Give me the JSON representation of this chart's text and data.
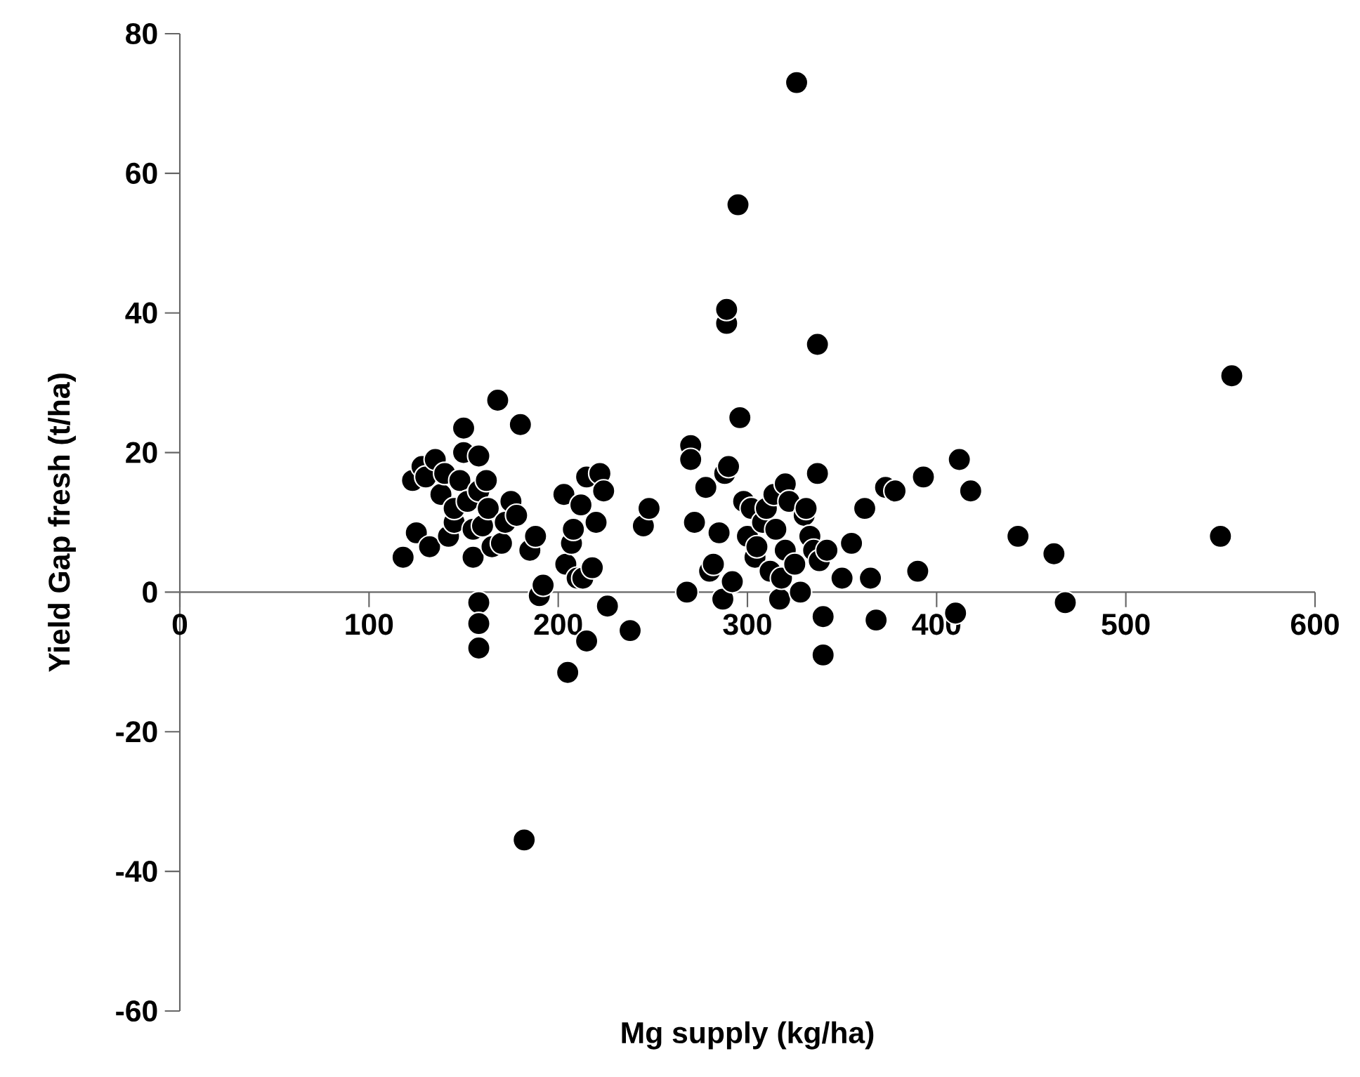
{
  "chart_data": {
    "type": "scatter",
    "xlabel": "Mg supply (kg/ha)",
    "ylabel": "Yield Gap fresh (t/ha)",
    "xlim": [
      0,
      600
    ],
    "ylim": [
      -60,
      80
    ],
    "xticks": [
      0,
      100,
      200,
      300,
      400,
      500,
      600
    ],
    "yticks": [
      -60,
      -40,
      -20,
      0,
      20,
      40,
      60,
      80
    ],
    "grid": false,
    "marker": "circle",
    "series": [
      {
        "color": "#000000",
        "x": [
          118,
          123,
          125,
          128,
          130,
          132,
          135,
          138,
          140,
          142,
          145,
          145,
          148,
          150,
          150,
          152,
          155,
          155,
          158,
          158,
          158,
          158,
          158,
          160,
          162,
          163,
          165,
          168,
          170,
          172,
          175,
          178,
          180,
          182,
          185,
          188,
          190,
          192,
          203,
          204,
          205,
          207,
          208,
          210,
          212,
          213,
          215,
          215,
          218,
          220,
          222,
          224,
          226,
          238,
          245,
          248,
          268,
          270,
          270,
          272,
          278,
          280,
          282,
          285,
          287,
          288,
          289,
          289,
          290,
          292,
          295,
          296,
          298,
          300,
          302,
          304,
          305,
          308,
          310,
          312,
          314,
          315,
          317,
          318,
          320,
          320,
          322,
          325,
          326,
          328,
          330,
          331,
          333,
          335,
          337,
          337,
          338,
          340,
          340,
          342,
          350,
          355,
          362,
          365,
          368,
          373,
          378,
          390,
          393,
          410,
          412,
          418,
          443,
          462,
          468,
          550,
          556
        ],
        "values": [
          5,
          16,
          8.5,
          18,
          16.5,
          6.5,
          19,
          14,
          17,
          8,
          10,
          12,
          16,
          23.5,
          20,
          13,
          5,
          9,
          -1.5,
          -4.5,
          -8,
          14.5,
          19.5,
          9.5,
          16,
          12,
          6.5,
          27.5,
          7,
          10,
          13,
          11,
          24,
          -35.5,
          6,
          8,
          -0.5,
          1,
          14,
          4,
          -11.5,
          7,
          9,
          2,
          12.5,
          2,
          16.5,
          -7,
          3.5,
          10,
          17,
          14.5,
          -2,
          -5.5,
          9.5,
          12,
          0,
          21,
          19,
          10,
          15,
          3,
          4,
          8.5,
          -1,
          17,
          38.5,
          40.5,
          18,
          1.5,
          55.5,
          25,
          13,
          8,
          12,
          5,
          6.5,
          10,
          12,
          3,
          14,
          9,
          -1,
          2,
          15.5,
          6,
          13,
          4,
          73,
          0,
          11,
          12,
          8,
          6,
          35.5,
          17,
          4.5,
          -3.5,
          -9,
          6,
          2,
          7,
          12,
          2,
          -4,
          15,
          14.5,
          3,
          16.5,
          -3,
          19,
          14.5,
          8,
          5.5,
          -1.5,
          8,
          31
        ]
      }
    ]
  }
}
